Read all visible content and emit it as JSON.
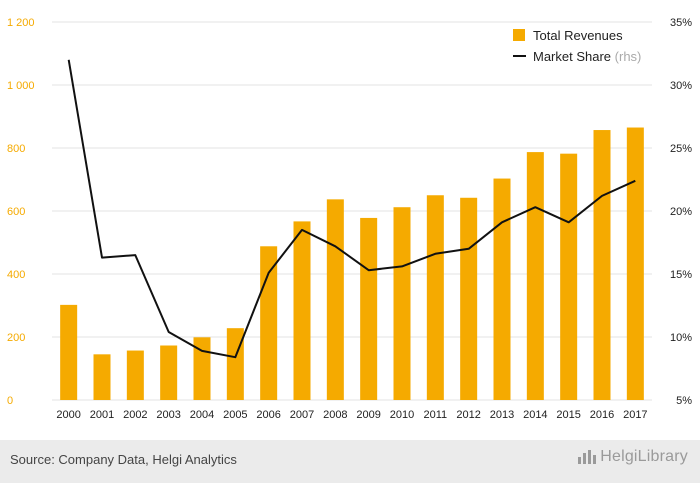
{
  "chart_data": {
    "type": "bar+line",
    "categories": [
      "2000",
      "2001",
      "2002",
      "2003",
      "2004",
      "2005",
      "2006",
      "2007",
      "2008",
      "2009",
      "2010",
      "2011",
      "2012",
      "2013",
      "2014",
      "2015",
      "2016",
      "2017"
    ],
    "series": [
      {
        "name": "Total Revenues",
        "type": "bar",
        "axis": "left",
        "values": [
          302,
          145,
          157,
          173,
          199,
          228,
          488,
          567,
          637,
          578,
          612,
          650,
          642,
          703,
          787,
          782,
          857,
          865
        ]
      },
      {
        "name": "Market Share",
        "type": "line",
        "axis": "right",
        "values": [
          32.0,
          16.3,
          16.5,
          10.4,
          8.9,
          8.4,
          15.1,
          18.5,
          17.2,
          15.3,
          15.6,
          16.6,
          17.0,
          19.1,
          20.3,
          19.1,
          21.2,
          22.4
        ]
      }
    ],
    "legend": {
      "bar_label": "Total Revenues",
      "line_label": "Market Share",
      "line_suffix": "(rhs)",
      "placement": "top-right"
    },
    "y_left": {
      "min": 0,
      "max": 1200,
      "ticks": [
        "0",
        "200",
        "400",
        "600",
        "800",
        "1 000",
        "1 200"
      ]
    },
    "y_right": {
      "min": 5,
      "max": 35,
      "ticks": [
        "5%",
        "10%",
        "15%",
        "20%",
        "25%",
        "30%",
        "35%"
      ]
    },
    "grid": true
  },
  "footer": {
    "source": "Source: Company Data, Helgi Analytics",
    "logo_text": "HelgiLibrary"
  },
  "colors": {
    "bar": "#f5aa00",
    "line": "#111111",
    "left_axis_text": "#f5aa00",
    "grid": "#e3e3e3",
    "muted": "#aaaaaa"
  }
}
